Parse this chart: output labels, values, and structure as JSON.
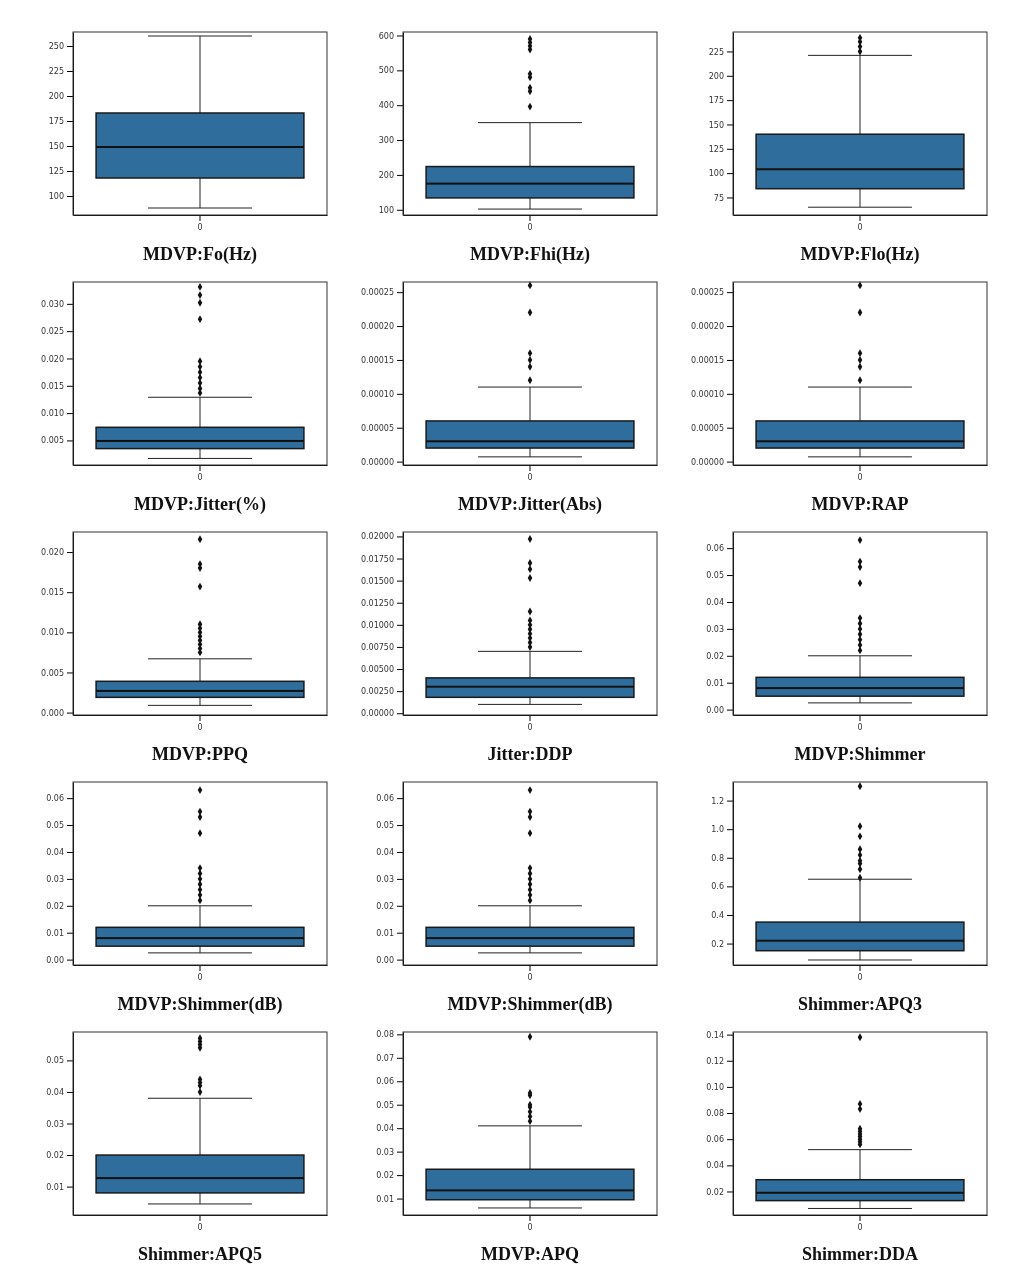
{
  "chart_data": [
    {
      "type": "box",
      "xlabel": "MDVP:Fo(Hz)",
      "categories": [
        "0"
      ],
      "color": "#2f6d9c",
      "marker": "diamond",
      "ylim": [
        81,
        264
      ],
      "yticks": [
        {
          "value": 100,
          "label": "100"
        },
        {
          "value": 125,
          "label": "125"
        },
        {
          "value": 150,
          "label": "150"
        },
        {
          "value": 175,
          "label": "175"
        },
        {
          "value": 200,
          "label": "200"
        },
        {
          "value": 225,
          "label": "225"
        },
        {
          "value": 250,
          "label": "250"
        }
      ],
      "boxes": [
        {
          "low": 88,
          "q1": 118,
          "median": 149,
          "q3": 183,
          "high": 260
        }
      ]
    },
    {
      "type": "box",
      "xlabel": "MDVP:Fhi(Hz)",
      "categories": [
        "0"
      ],
      "color": "#2f6d9c",
      "marker": "diamond",
      "ylim": [
        85,
        610
      ],
      "yticks": [
        {
          "value": 100,
          "label": "100"
        },
        {
          "value": 200,
          "label": "200"
        },
        {
          "value": 300,
          "label": "300"
        },
        {
          "value": 400,
          "label": "400"
        },
        {
          "value": 500,
          "label": "500"
        },
        {
          "value": 600,
          "label": "600"
        }
      ],
      "boxes": [
        {
          "low": 102,
          "q1": 134,
          "median": 175,
          "q3": 224,
          "high": 350,
          "outliers": [
            396,
            440,
            450,
            480,
            490,
            560,
            570,
            580,
            590
          ]
        }
      ]
    },
    {
      "type": "box",
      "xlabel": "MDVP:Flo(Hz)",
      "categories": [
        "0"
      ],
      "color": "#2f6d9c",
      "marker": "diamond",
      "ylim": [
        57,
        245
      ],
      "yticks": [
        {
          "value": 75,
          "label": "75"
        },
        {
          "value": 100,
          "label": "100"
        },
        {
          "value": 125,
          "label": "125"
        },
        {
          "value": 150,
          "label": "150"
        },
        {
          "value": 175,
          "label": "175"
        },
        {
          "value": 200,
          "label": "200"
        },
        {
          "value": 225,
          "label": "225"
        }
      ],
      "boxes": [
        {
          "low": 65,
          "q1": 84,
          "median": 104,
          "q3": 140,
          "high": 221,
          "outliers": [
            225,
            230,
            235,
            239
          ]
        }
      ]
    },
    {
      "type": "box",
      "xlabel": "MDVP:Jitter(%)",
      "categories": [
        "0"
      ],
      "color": "#2f6d9c",
      "marker": "diamond",
      "ylim": [
        0.0005,
        0.034
      ],
      "yticks": [
        {
          "value": 0.005,
          "label": "0.005"
        },
        {
          "value": 0.01,
          "label": "0.010"
        },
        {
          "value": 0.015,
          "label": "0.015"
        },
        {
          "value": 0.02,
          "label": "0.020"
        },
        {
          "value": 0.025,
          "label": "0.025"
        },
        {
          "value": 0.03,
          "label": "0.030"
        }
      ],
      "boxes": [
        {
          "low": 0.0017,
          "q1": 0.0035,
          "median": 0.0049,
          "q3": 0.0074,
          "high": 0.0129,
          "outliers": [
            0.0137,
            0.0145,
            0.0155,
            0.0165,
            0.0175,
            0.0185,
            0.0195,
            0.0272,
            0.0302,
            0.0316,
            0.0331
          ]
        }
      ]
    },
    {
      "type": "box",
      "xlabel": "MDVP:Jitter(Abs)",
      "categories": [
        "0"
      ],
      "color": "#2f6d9c",
      "marker": "diamond",
      "ylim": [
        -5e-06,
        0.000265
      ],
      "yticks": [
        {
          "value": 0,
          "label": "0.00000"
        },
        {
          "value": 5e-05,
          "label": "0.00005"
        },
        {
          "value": 0.0001,
          "label": "0.00010"
        },
        {
          "value": 0.00015,
          "label": "0.00015"
        },
        {
          "value": 0.0002,
          "label": "0.00020"
        },
        {
          "value": 0.00025,
          "label": "0.00025"
        }
      ],
      "boxes": [
        {
          "low": 7e-06,
          "q1": 2e-05,
          "median": 3e-05,
          "q3": 6e-05,
          "high": 0.00011,
          "outliers": [
            0.00012,
            0.00014,
            0.00015,
            0.00016,
            0.00022,
            0.00026
          ]
        }
      ]
    },
    {
      "type": "box",
      "xlabel": "MDVP:RAP",
      "categories": [
        "0"
      ],
      "color": "#2f6d9c",
      "marker": "diamond",
      "ylim": [
        -5e-06,
        0.000265
      ],
      "yticks": [
        {
          "value": 0,
          "label": "0.00000"
        },
        {
          "value": 5e-05,
          "label": "0.00005"
        },
        {
          "value": 0.0001,
          "label": "0.00010"
        },
        {
          "value": 0.00015,
          "label": "0.00015"
        },
        {
          "value": 0.0002,
          "label": "0.00020"
        },
        {
          "value": 0.00025,
          "label": "0.00025"
        }
      ],
      "boxes": [
        {
          "low": 7e-06,
          "q1": 2e-05,
          "median": 3e-05,
          "q3": 6e-05,
          "high": 0.00011,
          "outliers": [
            0.00012,
            0.00014,
            0.00015,
            0.00016,
            0.00022,
            0.00026
          ]
        }
      ]
    },
    {
      "type": "box",
      "xlabel": "MDVP:PPQ",
      "categories": [
        "0"
      ],
      "color": "#2f6d9c",
      "marker": "diamond",
      "ylim": [
        -0.0003,
        0.0225
      ],
      "yticks": [
        {
          "value": 0,
          "label": "0.000"
        },
        {
          "value": 0.005,
          "label": "0.005"
        },
        {
          "value": 0.01,
          "label": "0.010"
        },
        {
          "value": 0.015,
          "label": "0.015"
        },
        {
          "value": 0.02,
          "label": "0.020"
        }
      ],
      "boxes": [
        {
          "low": 0.0009,
          "q1": 0.0019,
          "median": 0.0027,
          "q3": 0.0039,
          "high": 0.0067,
          "outliers": [
            0.0075,
            0.008,
            0.0085,
            0.009,
            0.0095,
            0.01,
            0.0105,
            0.011,
            0.0157,
            0.018,
            0.0185,
            0.0216
          ]
        }
      ]
    },
    {
      "type": "box",
      "xlabel": "Jitter:DDP",
      "categories": [
        "0"
      ],
      "color": "#2f6d9c",
      "marker": "diamond",
      "ylim": [
        -0.0002,
        0.0205
      ],
      "yticks": [
        {
          "value": 0,
          "label": "0.00000"
        },
        {
          "value": 0.0025,
          "label": "0.00250"
        },
        {
          "value": 0.005,
          "label": "0.00500"
        },
        {
          "value": 0.0075,
          "label": "0.00750"
        },
        {
          "value": 0.01,
          "label": "0.01000"
        },
        {
          "value": 0.0125,
          "label": "0.01250"
        },
        {
          "value": 0.015,
          "label": "0.01500"
        },
        {
          "value": 0.0175,
          "label": "0.01750"
        },
        {
          "value": 0.02,
          "label": "0.02000"
        }
      ],
      "boxes": [
        {
          "low": 0.001,
          "q1": 0.0018,
          "median": 0.003,
          "q3": 0.004,
          "high": 0.007,
          "outliers": [
            0.0075,
            0.008,
            0.0085,
            0.009,
            0.0095,
            0.01,
            0.0105,
            0.0115,
            0.0153,
            0.0163,
            0.017,
            0.0197
          ]
        }
      ]
    },
    {
      "type": "box",
      "xlabel": "MDVP:Shimmer",
      "categories": [
        "0"
      ],
      "color": "#2f6d9c",
      "marker": "diamond",
      "ylim": [
        -0.002,
        0.066
      ],
      "yticks": [
        {
          "value": 0,
          "label": "0.00"
        },
        {
          "value": 0.01,
          "label": "0.01"
        },
        {
          "value": 0.02,
          "label": "0.02"
        },
        {
          "value": 0.03,
          "label": "0.03"
        },
        {
          "value": 0.04,
          "label": "0.04"
        },
        {
          "value": 0.05,
          "label": "0.05"
        },
        {
          "value": 0.06,
          "label": "0.06"
        }
      ],
      "boxes": [
        {
          "low": 0.0025,
          "q1": 0.005,
          "median": 0.008,
          "q3": 0.012,
          "high": 0.02,
          "outliers": [
            0.022,
            0.024,
            0.026,
            0.028,
            0.03,
            0.032,
            0.034,
            0.047,
            0.053,
            0.055,
            0.063
          ]
        }
      ]
    },
    {
      "type": "box",
      "xlabel": "MDVP:Shimmer(dB)",
      "categories": [
        "0"
      ],
      "color": "#2f6d9c",
      "marker": "diamond",
      "ylim": [
        -0.002,
        0.066
      ],
      "yticks": [
        {
          "value": 0,
          "label": "0.00"
        },
        {
          "value": 0.01,
          "label": "0.01"
        },
        {
          "value": 0.02,
          "label": "0.02"
        },
        {
          "value": 0.03,
          "label": "0.03"
        },
        {
          "value": 0.04,
          "label": "0.04"
        },
        {
          "value": 0.05,
          "label": "0.05"
        },
        {
          "value": 0.06,
          "label": "0.06"
        }
      ],
      "boxes": [
        {
          "low": 0.0025,
          "q1": 0.005,
          "median": 0.008,
          "q3": 0.012,
          "high": 0.02,
          "outliers": [
            0.022,
            0.024,
            0.026,
            0.028,
            0.03,
            0.032,
            0.034,
            0.047,
            0.053,
            0.055,
            0.063
          ]
        }
      ]
    },
    {
      "type": "box",
      "xlabel": "MDVP:Shimmer(dB)",
      "categories": [
        "0"
      ],
      "color": "#2f6d9c",
      "marker": "diamond",
      "ylim": [
        -0.002,
        0.066
      ],
      "yticks": [
        {
          "value": 0,
          "label": "0.00"
        },
        {
          "value": 0.01,
          "label": "0.01"
        },
        {
          "value": 0.02,
          "label": "0.02"
        },
        {
          "value": 0.03,
          "label": "0.03"
        },
        {
          "value": 0.04,
          "label": "0.04"
        },
        {
          "value": 0.05,
          "label": "0.05"
        },
        {
          "value": 0.06,
          "label": "0.06"
        }
      ],
      "boxes": [
        {
          "low": 0.0025,
          "q1": 0.005,
          "median": 0.008,
          "q3": 0.012,
          "high": 0.02,
          "outliers": [
            0.022,
            0.024,
            0.026,
            0.028,
            0.03,
            0.032,
            0.034,
            0.047,
            0.053,
            0.055,
            0.063
          ]
        }
      ]
    },
    {
      "type": "box",
      "xlabel": "Shimmer:APQ3",
      "categories": [
        "0"
      ],
      "color": "#2f6d9c",
      "marker": "diamond",
      "ylim": [
        0.05,
        1.33
      ],
      "yticks": [
        {
          "value": 0.2,
          "label": "0.2"
        },
        {
          "value": 0.4,
          "label": "0.4"
        },
        {
          "value": 0.6,
          "label": "0.6"
        },
        {
          "value": 0.8,
          "label": "0.8"
        },
        {
          "value": 1.0,
          "label": "1.0"
        },
        {
          "value": 1.2,
          "label": "1.2"
        }
      ],
      "boxes": [
        {
          "low": 0.085,
          "q1": 0.15,
          "median": 0.22,
          "q3": 0.35,
          "high": 0.65,
          "outliers": [
            0.66,
            0.72,
            0.76,
            0.78,
            0.82,
            0.86,
            0.95,
            1.02,
            1.3
          ]
        }
      ]
    },
    {
      "type": "box",
      "xlabel": "Shimmer:APQ5",
      "categories": [
        "0"
      ],
      "color": "#2f6d9c",
      "marker": "diamond",
      "ylim": [
        0.001,
        0.059
      ],
      "yticks": [
        {
          "value": 0.01,
          "label": "0.01"
        },
        {
          "value": 0.02,
          "label": "0.02"
        },
        {
          "value": 0.03,
          "label": "0.03"
        },
        {
          "value": 0.04,
          "label": "0.04"
        },
        {
          "value": 0.05,
          "label": "0.05"
        }
      ],
      "boxes": [
        {
          "low": 0.0045,
          "q1": 0.008,
          "median": 0.0127,
          "q3": 0.02,
          "high": 0.038,
          "outliers": [
            0.04,
            0.042,
            0.043,
            0.044,
            0.054,
            0.055,
            0.056,
            0.057
          ]
        }
      ]
    },
    {
      "type": "box",
      "xlabel": "MDVP:APQ",
      "categories": [
        "0"
      ],
      "color": "#2f6d9c",
      "marker": "diamond",
      "ylim": [
        0.003,
        0.081
      ],
      "yticks": [
        {
          "value": 0.01,
          "label": "0.01"
        },
        {
          "value": 0.02,
          "label": "0.02"
        },
        {
          "value": 0.03,
          "label": "0.03"
        },
        {
          "value": 0.04,
          "label": "0.04"
        },
        {
          "value": 0.05,
          "label": "0.05"
        },
        {
          "value": 0.06,
          "label": "0.06"
        },
        {
          "value": 0.07,
          "label": "0.07"
        },
        {
          "value": 0.08,
          "label": "0.08"
        }
      ],
      "boxes": [
        {
          "low": 0.006,
          "q1": 0.0095,
          "median": 0.0135,
          "q3": 0.0225,
          "high": 0.041,
          "outliers": [
            0.043,
            0.045,
            0.047,
            0.049,
            0.05,
            0.054,
            0.055,
            0.079
          ]
        }
      ]
    },
    {
      "type": "box",
      "xlabel": "Shimmer:DDA",
      "categories": [
        "0"
      ],
      "color": "#2f6d9c",
      "marker": "diamond",
      "ylim": [
        0.002,
        0.142
      ],
      "yticks": [
        {
          "value": 0.02,
          "label": "0.02"
        },
        {
          "value": 0.04,
          "label": "0.04"
        },
        {
          "value": 0.06,
          "label": "0.06"
        },
        {
          "value": 0.08,
          "label": "0.08"
        },
        {
          "value": 0.1,
          "label": "0.10"
        },
        {
          "value": 0.12,
          "label": "0.12"
        },
        {
          "value": 0.14,
          "label": "0.14"
        }
      ],
      "boxes": [
        {
          "low": 0.007,
          "q1": 0.013,
          "median": 0.019,
          "q3": 0.029,
          "high": 0.052,
          "outliers": [
            0.056,
            0.058,
            0.06,
            0.062,
            0.064,
            0.066,
            0.068,
            0.083,
            0.087,
            0.138
          ]
        }
      ]
    }
  ]
}
